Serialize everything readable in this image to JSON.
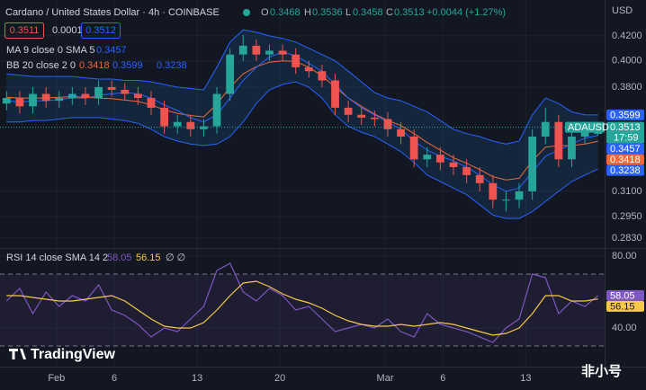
{
  "header": {
    "title": "Cardano / United States Dollar · 4h · COINBASE",
    "o_label": "O",
    "h_label": "H",
    "l_label": "L",
    "c_label": "C",
    "change": "+0.0044 (+1.27%)",
    "sell": "0.3511",
    "spread": "0.0001",
    "buy": "0.3512",
    "currency": "USD"
  },
  "chart_data": [
    {
      "type": "candlestick",
      "symbol": "ADAUSD",
      "countdown": "17:59",
      "log_scale": true,
      "grid": true,
      "up_color": "#26a69a",
      "down_color": "#ef5350",
      "xlim": [
        -0.5,
        45.5
      ],
      "ylim": [
        0.278,
        0.4505
      ],
      "xticks": [
        {
          "value": 3.8,
          "label": "Feb"
        },
        {
          "value": 8.2,
          "label": "6"
        },
        {
          "value": 14.5,
          "label": "13"
        },
        {
          "value": 20.8,
          "label": "20"
        },
        {
          "value": 28.8,
          "label": "Mar"
        },
        {
          "value": 33.2,
          "label": "6"
        },
        {
          "value": 39.5,
          "label": "13"
        }
      ],
      "yticks": [
        {
          "value": 0.42,
          "label": "0.4200"
        },
        {
          "value": 0.4,
          "label": "0.4000"
        },
        {
          "value": 0.38,
          "label": "0.3800"
        },
        {
          "value": 0.31,
          "label": "0.3100"
        },
        {
          "value": 0.295,
          "label": "0.2950"
        },
        {
          "value": 0.283,
          "label": "0.2830"
        }
      ],
      "open": [
        0.368,
        0.372,
        0.366,
        0.375,
        0.37,
        0.372,
        0.375,
        0.372,
        0.38,
        0.378,
        0.375,
        0.372,
        0.365,
        0.352,
        0.355,
        0.35,
        0.352,
        0.375,
        0.405,
        0.412,
        0.405,
        0.408,
        0.405,
        0.395,
        0.392,
        0.385,
        0.365,
        0.36,
        0.358,
        0.357,
        0.35,
        0.345,
        0.33,
        0.333,
        0.328,
        0.325,
        0.32,
        0.315,
        0.305,
        0.305,
        0.31,
        0.345,
        0.355,
        0.33,
        0.345,
        0.3468
      ],
      "high": [
        0.377,
        0.377,
        0.38,
        0.38,
        0.377,
        0.38,
        0.38,
        0.385,
        0.385,
        0.383,
        0.38,
        0.377,
        0.37,
        0.36,
        0.36,
        0.357,
        0.38,
        0.41,
        0.421,
        0.417,
        0.413,
        0.413,
        0.41,
        0.4,
        0.397,
        0.39,
        0.37,
        0.365,
        0.363,
        0.362,
        0.355,
        0.35,
        0.338,
        0.338,
        0.333,
        0.33,
        0.325,
        0.32,
        0.31,
        0.315,
        0.35,
        0.365,
        0.36,
        0.35,
        0.355,
        0.3536
      ],
      "low": [
        0.363,
        0.361,
        0.361,
        0.365,
        0.365,
        0.367,
        0.367,
        0.367,
        0.373,
        0.37,
        0.367,
        0.36,
        0.347,
        0.347,
        0.345,
        0.345,
        0.347,
        0.37,
        0.4,
        0.4,
        0.4,
        0.4,
        0.39,
        0.387,
        0.38,
        0.36,
        0.355,
        0.353,
        0.352,
        0.345,
        0.34,
        0.325,
        0.325,
        0.323,
        0.32,
        0.315,
        0.31,
        0.3,
        0.298,
        0.3,
        0.305,
        0.34,
        0.325,
        0.325,
        0.34,
        0.3458
      ],
      "close": [
        0.372,
        0.366,
        0.375,
        0.37,
        0.372,
        0.375,
        0.372,
        0.38,
        0.378,
        0.375,
        0.372,
        0.365,
        0.352,
        0.355,
        0.35,
        0.352,
        0.375,
        0.405,
        0.412,
        0.405,
        0.408,
        0.405,
        0.395,
        0.392,
        0.385,
        0.365,
        0.36,
        0.358,
        0.357,
        0.35,
        0.345,
        0.33,
        0.333,
        0.328,
        0.325,
        0.32,
        0.315,
        0.305,
        0.305,
        0.31,
        0.345,
        0.355,
        0.33,
        0.345,
        0.35,
        0.3513
      ],
      "overlays": [
        {
          "name": "MA 9 close 0 SMA 5",
          "color": "#2962ff",
          "values": [
            0.37,
            0.369,
            0.37,
            0.37,
            0.371,
            0.372,
            0.372,
            0.374,
            0.375,
            0.376,
            0.375,
            0.372,
            0.367,
            0.363,
            0.358,
            0.355,
            0.36,
            0.372,
            0.385,
            0.395,
            0.403,
            0.407,
            0.404,
            0.398,
            0.392,
            0.382,
            0.372,
            0.365,
            0.36,
            0.355,
            0.35,
            0.342,
            0.336,
            0.332,
            0.329,
            0.325,
            0.32,
            0.314,
            0.31,
            0.312,
            0.322,
            0.332,
            0.336,
            0.34,
            0.344,
            0.3457
          ]
        },
        {
          "name": "BB 20 close 2 0",
          "basis": {
            "color": "#f0693a",
            "values": [
              0.3725,
              0.372,
              0.372,
              0.372,
              0.3725,
              0.373,
              0.3725,
              0.372,
              0.3715,
              0.3705,
              0.3695,
              0.367,
              0.3635,
              0.361,
              0.3595,
              0.3585,
              0.3675,
              0.38,
              0.39,
              0.3955,
              0.399,
              0.4,
              0.3995,
              0.395,
              0.3885,
              0.38,
              0.372,
              0.366,
              0.3605,
              0.356,
              0.3525,
              0.347,
              0.341,
              0.336,
              0.331,
              0.3275,
              0.3235,
              0.319,
              0.317,
              0.318,
              0.329,
              0.338,
              0.339,
              0.339,
              0.34,
              0.3418
            ]
          },
          "upper": {
            "color": "#2962ff",
            "values": [
              0.39,
              0.389,
              0.388,
              0.388,
              0.388,
              0.388,
              0.387,
              0.386,
              0.386,
              0.385,
              0.385,
              0.384,
              0.382,
              0.38,
              0.379,
              0.378,
              0.395,
              0.415,
              0.425,
              0.423,
              0.42,
              0.418,
              0.415,
              0.41,
              0.405,
              0.4,
              0.392,
              0.384,
              0.376,
              0.372,
              0.37,
              0.366,
              0.362,
              0.356,
              0.35,
              0.347,
              0.345,
              0.342,
              0.34,
              0.342,
              0.36,
              0.372,
              0.368,
              0.362,
              0.36,
              0.3599
            ]
          },
          "lower": {
            "color": "#2962ff",
            "values": [
              0.355,
              0.355,
              0.356,
              0.356,
              0.357,
              0.358,
              0.358,
              0.358,
              0.357,
              0.356,
              0.354,
              0.35,
              0.345,
              0.342,
              0.34,
              0.339,
              0.34,
              0.345,
              0.355,
              0.368,
              0.378,
              0.382,
              0.384,
              0.38,
              0.372,
              0.36,
              0.352,
              0.348,
              0.345,
              0.34,
              0.335,
              0.328,
              0.32,
              0.316,
              0.312,
              0.308,
              0.302,
              0.296,
              0.294,
              0.294,
              0.298,
              0.304,
              0.31,
              0.316,
              0.32,
              0.3238
            ]
          }
        }
      ]
    },
    {
      "type": "line",
      "title": "RSI 14 close SMA 14 2",
      "extra": "∅ ∅",
      "ylim": [
        23.5,
        83.5
      ],
      "yticks": [
        {
          "value": 80,
          "label": "80.00"
        },
        {
          "value": 40,
          "label": "40.00"
        }
      ],
      "bands": [
        30,
        70
      ],
      "series": [
        {
          "color": "#7e57c2",
          "values": [
            55,
            62,
            48,
            60,
            52,
            58,
            55,
            64,
            50,
            47,
            42,
            35,
            40,
            38,
            45,
            52,
            72,
            76,
            60,
            55,
            62,
            58,
            50,
            52,
            45,
            38,
            40,
            42,
            40,
            45,
            38,
            35,
            48,
            42,
            40,
            38,
            35,
            32,
            40,
            45,
            70,
            68,
            48,
            55,
            52,
            58.05
          ]
        },
        {
          "color": "#f7c948",
          "values": [
            58,
            58,
            57,
            56,
            55,
            55,
            56,
            57,
            58,
            55,
            50,
            45,
            41,
            40,
            40,
            43,
            50,
            58,
            65,
            66,
            63,
            59,
            56,
            54,
            51,
            47,
            44,
            42,
            41,
            41,
            42,
            41,
            42,
            43,
            42,
            40,
            38,
            36,
            37,
            40,
            48,
            58,
            58,
            55,
            55,
            56.15
          ]
        }
      ]
    }
  ],
  "footer": {
    "logo": "TradingView",
    "watermark": "非小号"
  }
}
